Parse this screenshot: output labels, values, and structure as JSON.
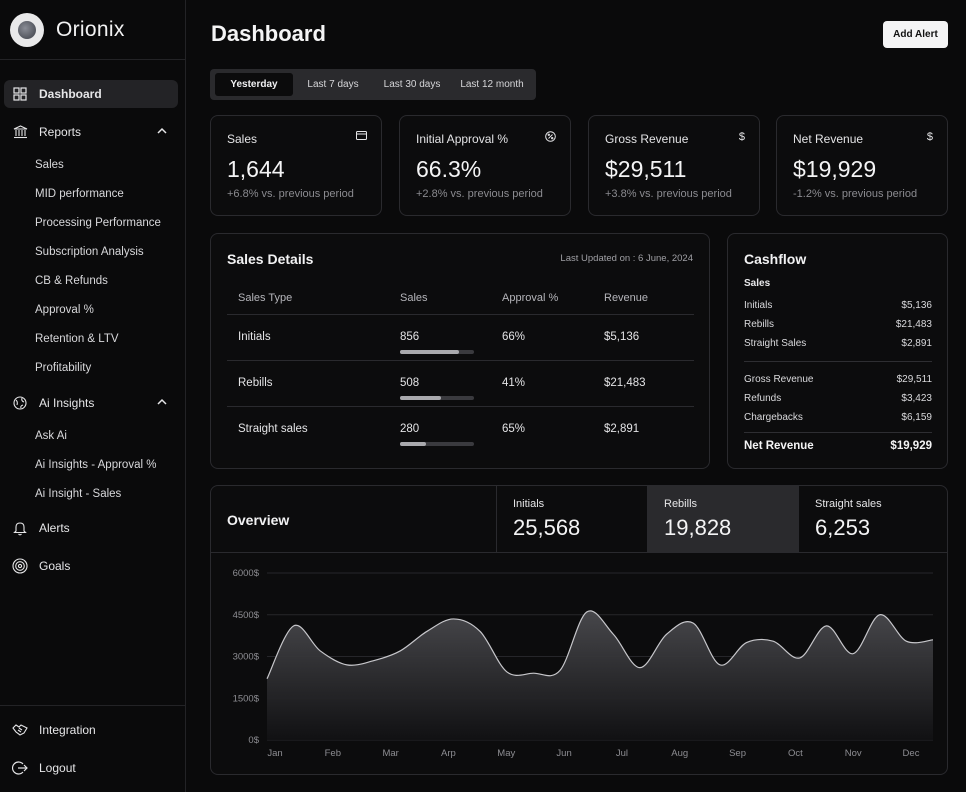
{
  "brand": {
    "name": "Orionix"
  },
  "nav": {
    "dashboard": "Dashboard",
    "reports": "Reports",
    "reports_items": [
      "Sales",
      "MID performance",
      "Processing Performance",
      "Subscription Analysis",
      "CB & Refunds",
      "Approval %",
      "Retention & LTV",
      "Profitability"
    ],
    "ai_insights": "Ai Insights",
    "ai_items": [
      "Ask Ai",
      "Ai Insights - Approval %",
      "Ai Insight - Sales"
    ],
    "alerts": "Alerts",
    "goals": "Goals",
    "integration": "Integration",
    "logout": "Logout"
  },
  "header": {
    "title": "Dashboard",
    "add_alert": "Add Alert"
  },
  "range_tabs": [
    "Yesterday",
    "Last 7 days",
    "Last 30 days",
    "Last 12 month"
  ],
  "kpis": [
    {
      "label": "Sales",
      "value": "1,644",
      "sub": "+6.8% vs. previous period",
      "icon": "credit-card-icon"
    },
    {
      "label": "Initial Approval %",
      "value": "66.3%",
      "sub": "+2.8% vs. previous period",
      "icon": "percent-badge-icon"
    },
    {
      "label": "Gross Revenue",
      "value": "$29,511",
      "sub": "+3.8% vs. previous period",
      "icon": "dollar-icon"
    },
    {
      "label": "Net Revenue",
      "value": "$19,929",
      "sub": "-1.2% vs. previous period",
      "icon": "dollar-icon"
    }
  ],
  "sales_details": {
    "title": "Sales Details",
    "updated": "Last Updated on : 6 June, 2024",
    "headers": [
      "Sales Type",
      "Sales",
      "Approval %",
      "Revenue"
    ],
    "rows": [
      {
        "type": "Initials",
        "sales": "856",
        "approval": "66%",
        "revenue": "$5,136",
        "bar": 0.8
      },
      {
        "type": "Rebills",
        "sales": "508",
        "approval": "41%",
        "revenue": "$21,483",
        "bar": 0.55
      },
      {
        "type": "Straight sales",
        "sales": "280",
        "approval": "65%",
        "revenue": "$2,891",
        "bar": 0.35
      }
    ]
  },
  "cashflow": {
    "title": "Cashflow",
    "sales_label": "Sales",
    "sales_rows": [
      {
        "label": "Initials",
        "value": "$5,136"
      },
      {
        "label": "Rebills",
        "value": "$21,483"
      },
      {
        "label": "Straight Sales",
        "value": "$2,891"
      }
    ],
    "rev_rows": [
      {
        "label": "Gross Revenue",
        "value": "$29,511"
      },
      {
        "label": "Refunds",
        "value": "$3,423"
      },
      {
        "label": "Chargebacks",
        "value": "$6,159"
      }
    ],
    "net": {
      "label": "Net Revenue",
      "value": "$19,929"
    }
  },
  "overview": {
    "title": "Overview",
    "stats": [
      {
        "label": "Initials",
        "value": "25,568"
      },
      {
        "label": "Rebills",
        "value": "19,828"
      },
      {
        "label": "Straight sales",
        "value": "6,253"
      }
    ]
  },
  "chart_data": {
    "type": "area",
    "title": "Overview",
    "series": [
      {
        "name": "Rebills",
        "values": [
          2200,
          4100,
          3200,
          2700,
          2850,
          3200,
          3900,
          4350,
          3900,
          2450,
          2400,
          2500,
          4600,
          3800,
          2600,
          3800,
          4200,
          2700,
          3500,
          3550,
          2950,
          4100,
          3100,
          4500,
          3550,
          3600
        ]
      }
    ],
    "x_labels": [
      "Jan",
      "Feb",
      "Mar",
      "Arp",
      "May",
      "Jun",
      "Jul",
      "Aug",
      "Sep",
      "Oct",
      "Nov",
      "Dec"
    ],
    "y_ticks": [
      "6000$",
      "4500$",
      "3000$",
      "1500$",
      "0$"
    ],
    "ylim": [
      0,
      6000
    ]
  }
}
